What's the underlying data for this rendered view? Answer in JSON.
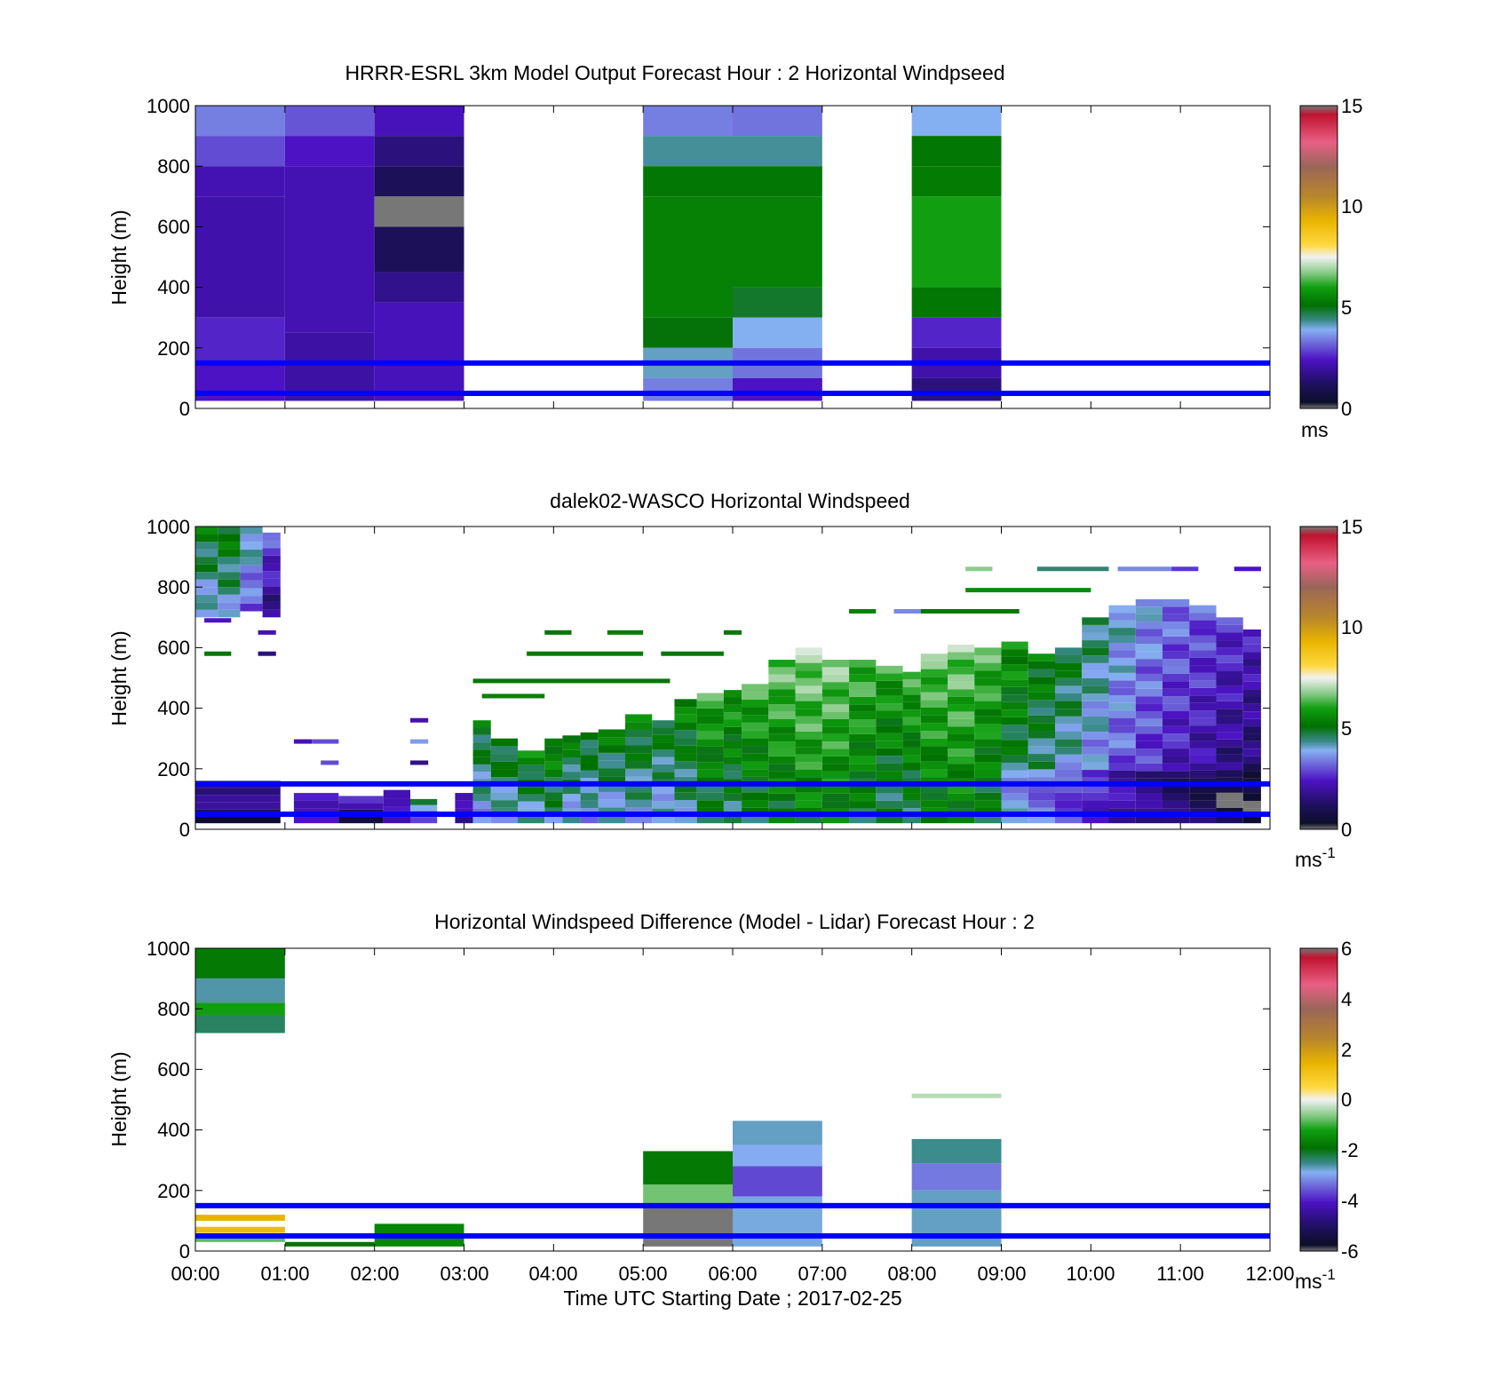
{
  "figure": {
    "xlabel": "Time UTC  Starting Date ; 2017-02-25",
    "x_tick_labels": [
      "00:00",
      "01:00",
      "02:00",
      "03:00",
      "04:00",
      "05:00",
      "06:00",
      "07:00",
      "08:00",
      "09:00",
      "10:00",
      "11:00",
      "12:00"
    ],
    "y_tick_labels": [
      "0",
      "200",
      "400",
      "600",
      "800",
      "1000"
    ],
    "reference_lines_m": [
      50,
      150
    ],
    "reference_line_color": "#0000ff"
  },
  "chart_data": [
    {
      "type": "heatmap",
      "title": "HRRR-ESRL 3km Model Output   Forecast Hour : 2 Horizontal Windpseed",
      "ylabel": "Height (m)",
      "xlim_hours": [
        0,
        12
      ],
      "ylim": [
        0,
        1000
      ],
      "colorbar": {
        "min": 0,
        "max": 15,
        "ticks": [
          "0",
          "5",
          "10",
          "15"
        ],
        "unit": "ms",
        "unit_sup": ""
      },
      "cells": [
        {
          "t0": 0,
          "t1": 1,
          "z0": 900,
          "z1": 1000,
          "v": 3.3
        },
        {
          "t0": 0,
          "t1": 1,
          "z0": 800,
          "z1": 900,
          "v": 2.8
        },
        {
          "t0": 0,
          "t1": 1,
          "z0": 700,
          "z1": 800,
          "v": 2.0
        },
        {
          "t0": 0,
          "t1": 1,
          "z0": 300,
          "z1": 700,
          "v": 1.9
        },
        {
          "t0": 0,
          "t1": 1,
          "z0": 150,
          "z1": 300,
          "v": 2.4
        },
        {
          "t0": 0,
          "t1": 1,
          "z0": 25,
          "z1": 150,
          "v": 2.2
        },
        {
          "t0": 1,
          "t1": 2,
          "z0": 900,
          "z1": 1000,
          "v": 2.9
        },
        {
          "t0": 1,
          "t1": 2,
          "z0": 800,
          "z1": 900,
          "v": 2.2
        },
        {
          "t0": 1,
          "t1": 2,
          "z0": 250,
          "z1": 800,
          "v": 2.0
        },
        {
          "t0": 1,
          "t1": 2,
          "z0": 25,
          "z1": 250,
          "v": 1.8
        },
        {
          "t0": 2,
          "t1": 3,
          "z0": 900,
          "z1": 1000,
          "v": 2.1
        },
        {
          "t0": 2,
          "t1": 3,
          "z0": 800,
          "z1": 900,
          "v": 1.3
        },
        {
          "t0": 2,
          "t1": 3,
          "z0": 700,
          "z1": 800,
          "v": 0.8
        },
        {
          "t0": 2,
          "t1": 3,
          "z0": 600,
          "z1": 700,
          "v": -0.1
        },
        {
          "t0": 2,
          "t1": 3,
          "z0": 450,
          "z1": 600,
          "v": 0.8
        },
        {
          "t0": 2,
          "t1": 3,
          "z0": 350,
          "z1": 450,
          "v": 1.5
        },
        {
          "t0": 2,
          "t1": 3,
          "z0": 25,
          "z1": 350,
          "v": 2.1
        },
        {
          "t0": 5,
          "t1": 6,
          "z0": 900,
          "z1": 1000,
          "v": 3.3
        },
        {
          "t0": 5,
          "t1": 6,
          "z0": 800,
          "z1": 900,
          "v": 4.2
        },
        {
          "t0": 5,
          "t1": 6,
          "z0": 700,
          "z1": 800,
          "v": 5.2
        },
        {
          "t0": 5,
          "t1": 6,
          "z0": 300,
          "z1": 700,
          "v": 5.4
        },
        {
          "t0": 5,
          "t1": 6,
          "z0": 200,
          "z1": 300,
          "v": 5.0
        },
        {
          "t0": 5,
          "t1": 6,
          "z0": 100,
          "z1": 200,
          "v": 4.0
        },
        {
          "t0": 5,
          "t1": 6,
          "z0": 25,
          "z1": 100,
          "v": 3.3
        },
        {
          "t0": 6,
          "t1": 7,
          "z0": 900,
          "z1": 1000,
          "v": 3.2
        },
        {
          "t0": 6,
          "t1": 7,
          "z0": 800,
          "z1": 900,
          "v": 4.2
        },
        {
          "t0": 6,
          "t1": 7,
          "z0": 700,
          "z1": 800,
          "v": 5.2
        },
        {
          "t0": 6,
          "t1": 7,
          "z0": 400,
          "z1": 700,
          "v": 5.4
        },
        {
          "t0": 6,
          "t1": 7,
          "z0": 300,
          "z1": 400,
          "v": 4.8
        },
        {
          "t0": 6,
          "t1": 7,
          "z0": 200,
          "z1": 300,
          "v": 3.8
        },
        {
          "t0": 6,
          "t1": 7,
          "z0": 100,
          "z1": 200,
          "v": 3.2
        },
        {
          "t0": 6,
          "t1": 7,
          "z0": 25,
          "z1": 100,
          "v": 2.2
        },
        {
          "t0": 8,
          "t1": 9,
          "z0": 900,
          "z1": 1000,
          "v": 3.8
        },
        {
          "t0": 8,
          "t1": 9,
          "z0": 800,
          "z1": 900,
          "v": 5.2
        },
        {
          "t0": 8,
          "t1": 9,
          "z0": 700,
          "z1": 800,
          "v": 5.3
        },
        {
          "t0": 8,
          "t1": 9,
          "z0": 400,
          "z1": 700,
          "v": 6.0
        },
        {
          "t0": 8,
          "t1": 9,
          "z0": 300,
          "z1": 400,
          "v": 5.2
        },
        {
          "t0": 8,
          "t1": 9,
          "z0": 200,
          "z1": 300,
          "v": 2.4
        },
        {
          "t0": 8,
          "t1": 9,
          "z0": 100,
          "z1": 200,
          "v": 1.9
        },
        {
          "t0": 8,
          "t1": 9,
          "z0": 25,
          "z1": 100,
          "v": 1.3
        }
      ]
    },
    {
      "type": "heatmap",
      "title": "dalek02-WASCO  Horizontal Windspeed",
      "ylabel": "Height (m)",
      "xlim_hours": [
        0,
        12
      ],
      "ylim": [
        0,
        1000
      ],
      "colorbar": {
        "min": 0,
        "max": 15,
        "ticks": [
          "0",
          "5",
          "10",
          "15"
        ],
        "unit": "ms",
        "unit_sup": "-1"
      },
      "columns": [
        {
          "t0": 0,
          "t1": 0.25,
          "z0": 700,
          "z1": 1000,
          "v": 5.2
        },
        {
          "t0": 0.25,
          "t1": 0.5,
          "z0": 700,
          "z1": 1000,
          "v": 5.4
        },
        {
          "t0": 0.5,
          "t1": 0.75,
          "z0": 720,
          "z1": 1000,
          "v": 4.4
        },
        {
          "t0": 0.75,
          "t1": 0.95,
          "z0": 700,
          "z1": 980,
          "v": 3.0
        },
        {
          "t0": 0,
          "t1": 0.95,
          "z0": 20,
          "z1": 160,
          "v": 2.2
        },
        {
          "t0": 1.1,
          "t1": 1.6,
          "z0": 20,
          "z1": 120,
          "v": 3.2
        },
        {
          "t0": 1.6,
          "t1": 2.1,
          "z0": 20,
          "z1": 110,
          "v": 2.4
        },
        {
          "t0": 2.1,
          "t1": 2.4,
          "z0": 20,
          "z1": 130,
          "v": 3.0
        },
        {
          "t0": 2.4,
          "t1": 2.7,
          "z0": 20,
          "z1": 100,
          "v": 4.6
        },
        {
          "t0": 2.9,
          "t1": 3.1,
          "z0": 20,
          "z1": 120,
          "v": 2.8
        },
        {
          "t0": 3.1,
          "t1": 3.3,
          "z0": 20,
          "z1": 360,
          "v": 5.2
        },
        {
          "t0": 3.3,
          "t1": 3.6,
          "z0": 20,
          "z1": 300,
          "v": 5.3
        },
        {
          "t0": 3.6,
          "t1": 3.9,
          "z0": 20,
          "z1": 260,
          "v": 5.6
        },
        {
          "t0": 3.9,
          "t1": 4.1,
          "z0": 20,
          "z1": 300,
          "v": 5.8
        },
        {
          "t0": 4.1,
          "t1": 4.3,
          "z0": 20,
          "z1": 310,
          "v": 5.3
        },
        {
          "t0": 4.3,
          "t1": 4.5,
          "z0": 20,
          "z1": 320,
          "v": 5.2
        },
        {
          "t0": 4.5,
          "t1": 4.8,
          "z0": 20,
          "z1": 330,
          "v": 5.3
        },
        {
          "t0": 4.8,
          "t1": 5.1,
          "z0": 20,
          "z1": 380,
          "v": 5.4
        },
        {
          "t0": 5.1,
          "t1": 5.35,
          "z0": 20,
          "z1": 360,
          "v": 5.2
        },
        {
          "t0": 5.35,
          "t1": 5.6,
          "z0": 20,
          "z1": 430,
          "v": 5.6
        },
        {
          "t0": 5.6,
          "t1": 5.9,
          "z0": 20,
          "z1": 450,
          "v": 6.2
        },
        {
          "t0": 5.9,
          "t1": 6.1,
          "z0": 20,
          "z1": 460,
          "v": 6.0
        },
        {
          "t0": 6.1,
          "t1": 6.4,
          "z0": 20,
          "z1": 480,
          "v": 6.3
        },
        {
          "t0": 6.4,
          "t1": 6.7,
          "z0": 20,
          "z1": 560,
          "v": 6.6
        },
        {
          "t0": 6.7,
          "t1": 7.0,
          "z0": 20,
          "z1": 600,
          "v": 6.9
        },
        {
          "t0": 7.0,
          "t1": 7.3,
          "z0": 20,
          "z1": 560,
          "v": 6.8
        },
        {
          "t0": 7.3,
          "t1": 7.6,
          "z0": 20,
          "z1": 560,
          "v": 6.4
        },
        {
          "t0": 7.6,
          "t1": 7.9,
          "z0": 20,
          "z1": 540,
          "v": 6.1
        },
        {
          "t0": 7.9,
          "t1": 8.1,
          "z0": 20,
          "z1": 520,
          "v": 6.2
        },
        {
          "t0": 8.1,
          "t1": 8.4,
          "z0": 20,
          "z1": 580,
          "v": 6.6
        },
        {
          "t0": 8.4,
          "t1": 8.7,
          "z0": 20,
          "z1": 610,
          "v": 6.8
        },
        {
          "t0": 8.7,
          "t1": 9.0,
          "z0": 20,
          "z1": 600,
          "v": 6.4
        },
        {
          "t0": 9.0,
          "t1": 9.3,
          "z0": 20,
          "z1": 620,
          "v": 5.8
        },
        {
          "t0": 9.3,
          "t1": 9.6,
          "z0": 20,
          "z1": 580,
          "v": 5.4
        },
        {
          "t0": 9.6,
          "t1": 9.9,
          "z0": 20,
          "z1": 600,
          "v": 5.0
        },
        {
          "t0": 9.9,
          "t1": 10.2,
          "z0": 20,
          "z1": 700,
          "v": 4.6
        },
        {
          "t0": 10.2,
          "t1": 10.5,
          "z0": 20,
          "z1": 740,
          "v": 4.1
        },
        {
          "t0": 10.5,
          "t1": 10.8,
          "z0": 20,
          "z1": 760,
          "v": 3.7
        },
        {
          "t0": 10.8,
          "t1": 11.1,
          "z0": 20,
          "z1": 760,
          "v": 3.3
        },
        {
          "t0": 11.1,
          "t1": 11.4,
          "z0": 20,
          "z1": 740,
          "v": 3.0
        },
        {
          "t0": 11.4,
          "t1": 11.7,
          "z0": 20,
          "z1": 700,
          "v": 2.6
        },
        {
          "t0": 11.7,
          "t1": 11.9,
          "z0": 20,
          "z1": 660,
          "v": 2.3
        }
      ],
      "streaks": [
        {
          "t0": 3.2,
          "t1": 3.9,
          "z": 440,
          "v": 5.4
        },
        {
          "t0": 3.1,
          "t1": 5.3,
          "z": 490,
          "v": 5.2
        },
        {
          "t0": 3.7,
          "t1": 5.0,
          "z": 580,
          "v": 5.3
        },
        {
          "t0": 3.9,
          "t1": 4.2,
          "z": 650,
          "v": 5.2
        },
        {
          "t0": 4.6,
          "t1": 5.0,
          "z": 650,
          "v": 5.3
        },
        {
          "t0": 5.2,
          "t1": 5.9,
          "z": 580,
          "v": 5.2
        },
        {
          "t0": 5.9,
          "t1": 6.1,
          "z": 650,
          "v": 5.2
        },
        {
          "t0": 7.3,
          "t1": 7.6,
          "z": 720,
          "v": 5.4
        },
        {
          "t0": 7.8,
          "t1": 8.1,
          "z": 720,
          "v": 3.4
        },
        {
          "t0": 8.1,
          "t1": 9.2,
          "z": 720,
          "v": 5.2
        },
        {
          "t0": 8.6,
          "t1": 10.0,
          "z": 790,
          "v": 5.6
        },
        {
          "t0": 9.4,
          "t1": 10.2,
          "z": 860,
          "v": 4.4
        },
        {
          "t0": 10.3,
          "t1": 10.9,
          "z": 860,
          "v": 3.4
        },
        {
          "t0": 10.9,
          "t1": 11.2,
          "z": 860,
          "v": 2.6
        },
        {
          "t0": 11.6,
          "t1": 11.9,
          "z": 860,
          "v": 2.2
        },
        {
          "t0": 8.6,
          "t1": 8.9,
          "z": 860,
          "v": 6.8
        },
        {
          "t0": 0.1,
          "t1": 0.4,
          "z": 580,
          "v": 5.2
        },
        {
          "t0": 0.7,
          "t1": 0.9,
          "z": 580,
          "v": 1.3
        },
        {
          "t0": 0.1,
          "t1": 0.4,
          "z": 690,
          "v": 2.2
        },
        {
          "t0": 0.7,
          "t1": 0.9,
          "z": 650,
          "v": 2.0
        },
        {
          "t0": 1.1,
          "t1": 1.3,
          "z": 290,
          "v": 2.0
        },
        {
          "t0": 1.3,
          "t1": 1.6,
          "z": 290,
          "v": 2.8
        },
        {
          "t0": 2.4,
          "t1": 2.6,
          "z": 290,
          "v": 3.6
        },
        {
          "t0": 2.4,
          "t1": 2.6,
          "z": 360,
          "v": 2.0
        },
        {
          "t0": 1.4,
          "t1": 1.6,
          "z": 220,
          "v": 2.8
        },
        {
          "t0": 2.4,
          "t1": 2.6,
          "z": 220,
          "v": 1.5
        }
      ]
    },
    {
      "type": "heatmap",
      "title": "Horizontal Windspeed Difference (Model - Lidar) Forecast Hour : 2",
      "ylabel": "Height (m)",
      "xlim_hours": [
        0,
        12
      ],
      "ylim": [
        0,
        1000
      ],
      "colorbar": {
        "min": -6,
        "max": 6,
        "ticks": [
          "-6",
          "-4",
          "-2",
          "0",
          "2",
          "4",
          "6"
        ],
        "unit": "ms",
        "unit_sup": "-1"
      },
      "cells": [
        {
          "t0": 0,
          "t1": 1,
          "z0": 900,
          "z1": 1000,
          "v": -1.8
        },
        {
          "t0": 0,
          "t1": 1,
          "z0": 820,
          "z1": 900,
          "v": -2.7
        },
        {
          "t0": 0,
          "t1": 1,
          "z0": 780,
          "z1": 820,
          "v": -1.2
        },
        {
          "t0": 0,
          "t1": 1,
          "z0": 720,
          "z1": 780,
          "v": -2.4
        },
        {
          "t0": 0,
          "t1": 1,
          "z0": 100,
          "z1": 120,
          "v": 1.6
        },
        {
          "t0": 0,
          "t1": 1,
          "z0": 60,
          "z1": 80,
          "v": 1.4
        },
        {
          "t0": 0,
          "t1": 1,
          "z0": 30,
          "z1": 50,
          "v": -0.8
        },
        {
          "t0": 1,
          "t1": 2,
          "z0": 15,
          "z1": 30,
          "v": -2.0
        },
        {
          "t0": 2,
          "t1": 3,
          "z0": 15,
          "z1": 90,
          "v": -1.6
        },
        {
          "t0": 5,
          "t1": 6,
          "z0": 220,
          "z1": 330,
          "v": -1.8
        },
        {
          "t0": 5,
          "t1": 6,
          "z0": 150,
          "z1": 220,
          "v": -0.7
        },
        {
          "t0": 5,
          "t1": 6,
          "z0": 15,
          "z1": 150,
          "v": -7.0
        },
        {
          "t0": 6,
          "t1": 7,
          "z0": 350,
          "z1": 430,
          "v": -2.8
        },
        {
          "t0": 6,
          "t1": 7,
          "z0": 280,
          "z1": 350,
          "v": -3.0
        },
        {
          "t0": 6,
          "t1": 7,
          "z0": 180,
          "z1": 280,
          "v": -3.8
        },
        {
          "t0": 6,
          "t1": 7,
          "z0": 15,
          "z1": 180,
          "v": -2.9
        },
        {
          "t0": 8,
          "t1": 9,
          "z0": 290,
          "z1": 370,
          "v": -2.6
        },
        {
          "t0": 8,
          "t1": 9,
          "z0": 200,
          "z1": 290,
          "v": -3.4
        },
        {
          "t0": 8,
          "t1": 9,
          "z0": 15,
          "z1": 200,
          "v": -2.8
        },
        {
          "t0": 8,
          "t1": 9,
          "z0": 505,
          "z1": 520,
          "v": -0.3
        }
      ]
    }
  ]
}
